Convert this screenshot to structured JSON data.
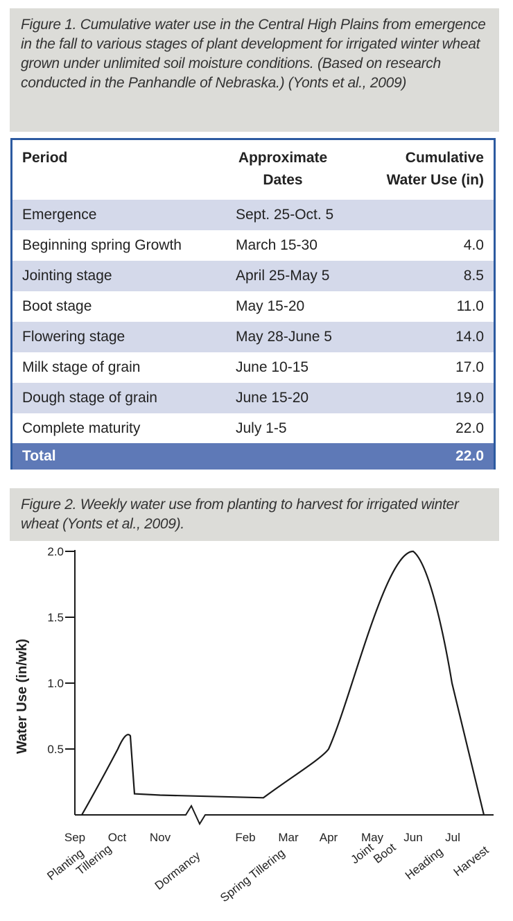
{
  "figure1": {
    "caption": "Figure 1. Cumulative water use in the Central High Plains from emergence in the fall to various stages of plant development for irrigated winter wheat grown under unlimited soil moisture conditions. (Based on research conducted in the Panhandle of Nebraska.) (Yonts et al., 2009)"
  },
  "table": {
    "headers": {
      "period": "Period",
      "dates_1": "Approximate",
      "dates_2": "Dates",
      "water_1": "Cumulative",
      "water_2": "Water Use (in)"
    },
    "rows": [
      {
        "period": "Emergence",
        "dates": "Sept. 25-Oct. 5",
        "water": ""
      },
      {
        "period": "Beginning spring Growth",
        "dates": "March 15-30",
        "water": "4.0"
      },
      {
        "period": "Jointing stage",
        "dates": "April 25-May 5",
        "water": "8.5"
      },
      {
        "period": "Boot stage",
        "dates": "May 15-20",
        "water": "11.0"
      },
      {
        "period": "Flowering stage",
        "dates": "May 28-June 5",
        "water": "14.0"
      },
      {
        "period": "Milk stage of grain",
        "dates": "June 10-15",
        "water": "17.0"
      },
      {
        "period": "Dough stage of grain",
        "dates": "June 15-20",
        "water": "19.0"
      },
      {
        "period": "Complete maturity",
        "dates": "July 1-5",
        "water": "22.0"
      }
    ],
    "total": {
      "label": "Total",
      "value": "22.0"
    },
    "colors": {
      "border": "#2c5aa0",
      "stripe": "#d4d9ea",
      "total": "#5e79b7"
    }
  },
  "figure2": {
    "caption": "Figure 2. Weekly water use from planting to harvest for irrigated winter wheat (Yonts et al., 2009)."
  },
  "chart_data": {
    "type": "line",
    "title": "",
    "xlabel": "",
    "ylabel": "Water Use (in/wk)",
    "ylim": [
      0,
      2.0
    ],
    "y_ticks": [
      "0.5",
      "1.0",
      "1.5",
      "2.0"
    ],
    "y_tick_values": [
      0.5,
      1.0,
      1.5,
      2.0
    ],
    "months": [
      "Sep",
      "Oct",
      "Nov",
      "Feb",
      "Mar",
      "Apr",
      "May",
      "Jun",
      "Jul"
    ],
    "axis_break": "between Nov and Feb",
    "stages": [
      "Planting",
      "Tillering",
      "Dormancy",
      "Spring Tillering",
      "Joint",
      "Boot",
      "Heading",
      "Harvest"
    ],
    "series": [
      {
        "x": [
          "Sep",
          "Sep-Oct",
          "Oct",
          "Oct",
          "Oct",
          "Nov",
          "Feb",
          "Mar",
          "Apr",
          "May",
          "Jun",
          "Jun-Jul",
          "Jul",
          "Jul-Harvest"
        ],
        "y": [
          0.0,
          0.2,
          0.5,
          0.6,
          0.16,
          0.15,
          0.13,
          0.22,
          0.5,
          1.2,
          2.0,
          1.8,
          1.0,
          0.0
        ]
      }
    ],
    "grid": false,
    "legend": "none"
  }
}
